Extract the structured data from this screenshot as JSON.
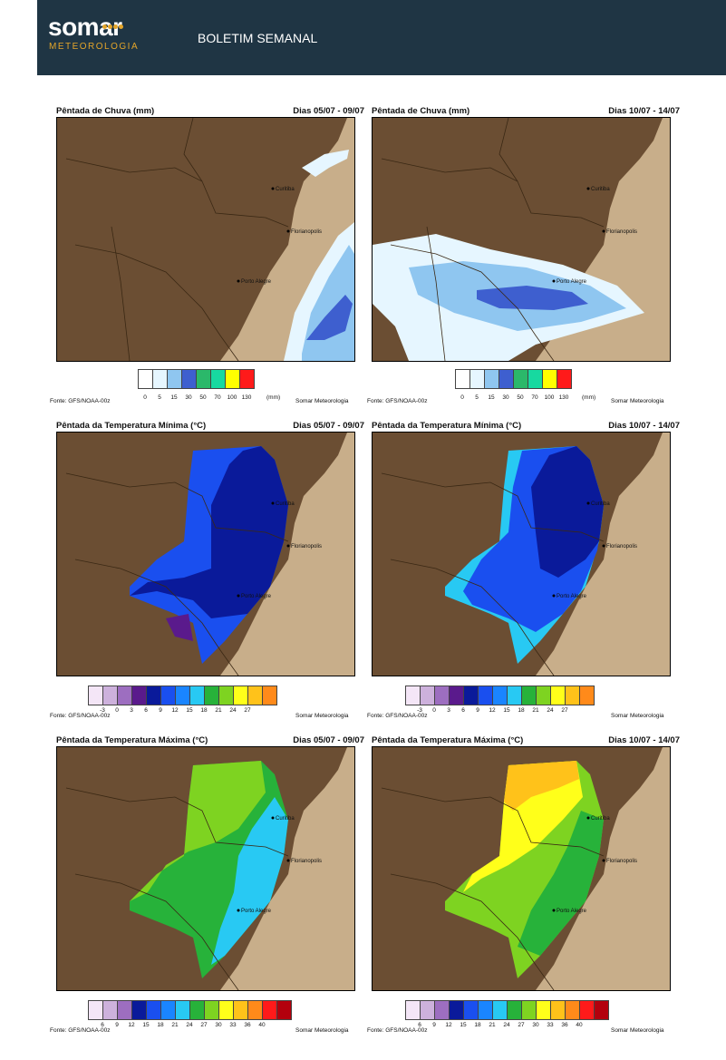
{
  "header": {
    "logo_word": "somar",
    "logo_sub": "METEOROLOGIA",
    "title": "BOLETIM SEMANAL"
  },
  "colors": {
    "header_bg": "#1f3544",
    "brand_orange": "#e3a52a",
    "land": "#6b4e33",
    "ocean": "#c8ae8a"
  },
  "cities": [
    "Curitiba",
    "Florianopolis",
    "Porto Alegre"
  ],
  "panels": [
    {
      "title": "Pêntada de Chuva (mm)",
      "dates": "Dias 05/07 - 09/07",
      "source": "Fonte: GFS/NOAA-00z",
      "credit": "Somar Meteorologia",
      "unit": "(mm)",
      "scale_colors": [
        "#ffffff",
        "#e6f6ff",
        "#8fc6f0",
        "#3e5fcf",
        "#2bb86a",
        "#17d9a0",
        "#ffff00",
        "#ff1a1a"
      ],
      "ticks": [
        "0",
        "5",
        "15",
        "30",
        "50",
        "70",
        "100",
        "130"
      ]
    },
    {
      "title": "Pêntada de Chuva (mm)",
      "dates": "Dias 10/07 - 14/07",
      "source": "Fonte: GFS/NOAA-00z",
      "credit": "Somar Meteorologia",
      "unit": "(mm)",
      "scale_colors": [
        "#ffffff",
        "#e6f6ff",
        "#8fc6f0",
        "#3e5fcf",
        "#2bb86a",
        "#17d9a0",
        "#ffff00",
        "#ff1a1a"
      ],
      "ticks": [
        "0",
        "5",
        "15",
        "30",
        "50",
        "70",
        "100",
        "130"
      ]
    },
    {
      "title": "Pêntada da Temperatura Mínima (°C)",
      "dates": "Dias 05/07 - 09/07",
      "source": "Fonte: GFS/NOAA-00z",
      "credit": "Somar Meteorologia",
      "unit": "",
      "scale_colors": [
        "#f4e6f7",
        "#cdb1dc",
        "#9d6ec0",
        "#5a1a8c",
        "#0a1a9a",
        "#1a4fef",
        "#1a85ff",
        "#28c9f3",
        "#27b23a",
        "#7ed321",
        "#ffff1a",
        "#ffc21a",
        "#ff8a1a"
      ],
      "ticks": [
        "-3",
        "0",
        "3",
        "6",
        "9",
        "12",
        "15",
        "18",
        "21",
        "24",
        "27"
      ]
    },
    {
      "title": "Pêntada da Temperatura Mínima (°C)",
      "dates": "Dias 10/07 - 14/07",
      "source": "Fonte: GFS/NOAA-00z",
      "credit": "Somar Meteorologia",
      "unit": "",
      "scale_colors": [
        "#f4e6f7",
        "#cdb1dc",
        "#9d6ec0",
        "#5a1a8c",
        "#0a1a9a",
        "#1a4fef",
        "#1a85ff",
        "#28c9f3",
        "#27b23a",
        "#7ed321",
        "#ffff1a",
        "#ffc21a",
        "#ff8a1a"
      ],
      "ticks": [
        "-3",
        "0",
        "3",
        "6",
        "9",
        "12",
        "15",
        "18",
        "21",
        "24",
        "27"
      ]
    },
    {
      "title": "Pêntada da Temperatura Máxima (°C)",
      "dates": "Dias 05/07 - 09/07",
      "source": "Fonte: GFS/NOAA-00z",
      "credit": "Somar Meteorologia",
      "unit": "",
      "scale_colors": [
        "#f4e6f7",
        "#cdb1dc",
        "#9d6ec0",
        "#0a1a9a",
        "#1a4fef",
        "#1a85ff",
        "#28c9f3",
        "#27b23a",
        "#7ed321",
        "#ffff1a",
        "#ffc21a",
        "#ff8a1a",
        "#ff1a1a",
        "#b3000d"
      ],
      "ticks": [
        "6",
        "9",
        "12",
        "15",
        "18",
        "21",
        "24",
        "27",
        "30",
        "33",
        "36",
        "40"
      ]
    },
    {
      "title": "Pêntada da Temperatura Máxima (°C)",
      "dates": "Dias 10/07 - 14/07",
      "source": "Fonte: GFS/NOAA-00z",
      "credit": "Somar Meteorologia",
      "unit": "",
      "scale_colors": [
        "#f4e6f7",
        "#cdb1dc",
        "#9d6ec0",
        "#0a1a9a",
        "#1a4fef",
        "#1a85ff",
        "#28c9f3",
        "#27b23a",
        "#7ed321",
        "#ffff1a",
        "#ffc21a",
        "#ff8a1a",
        "#ff1a1a",
        "#b3000d"
      ],
      "ticks": [
        "6",
        "9",
        "12",
        "15",
        "18",
        "21",
        "24",
        "27",
        "30",
        "33",
        "36",
        "40"
      ]
    }
  ]
}
